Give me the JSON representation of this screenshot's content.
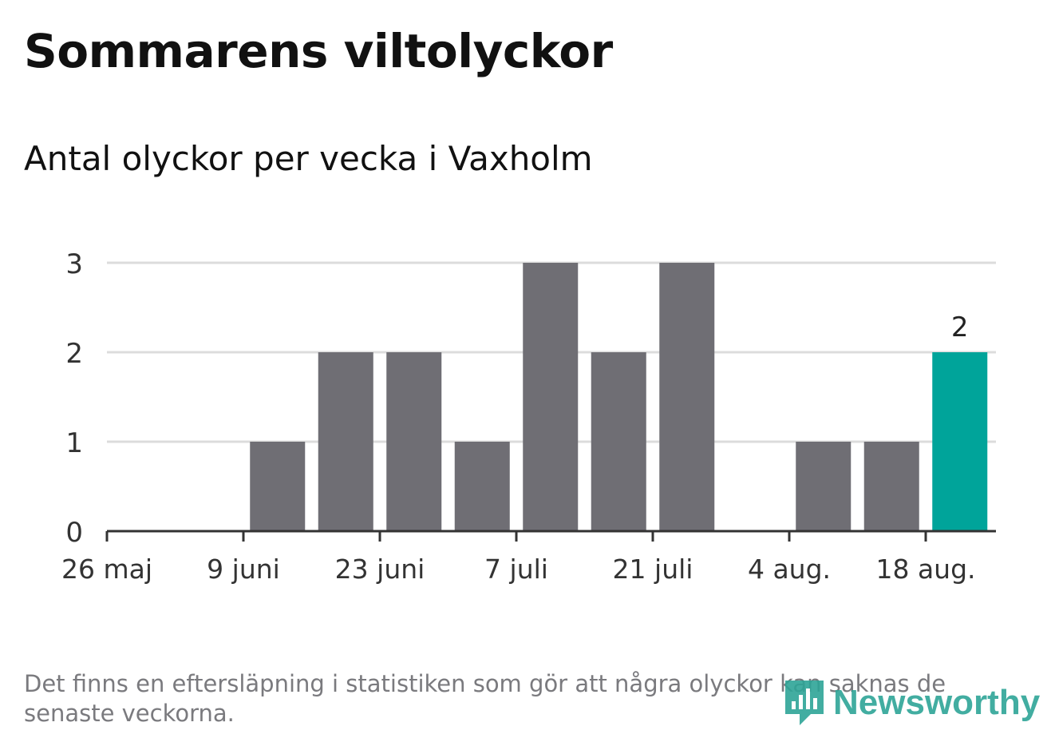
{
  "header": {
    "title": "Sommarens viltolyckor",
    "subtitle": "Antal olyckor per vecka i Vaxholm"
  },
  "footer": {
    "note": "Det finns en eftersläpning i statistiken som gör att några olyckor kan saknas de senaste veckorna.",
    "brand": "Newsworthy"
  },
  "colors": {
    "bar": "#6f6e74",
    "highlight": "#00a49a",
    "grid": "#dcdcdc",
    "axis": "#333333"
  },
  "chart_data": {
    "type": "bar",
    "title": "Sommarens viltolyckor",
    "subtitle": "Antal olyckor per vecka i Vaxholm",
    "x": [
      "2019-05-26",
      "2019-06-02",
      "2019-06-09",
      "2019-06-16",
      "2019-06-23",
      "2019-06-30",
      "2019-07-07",
      "2019-07-14",
      "2019-07-21",
      "2019-07-28",
      "2019-08-04",
      "2019-08-11",
      "2019-08-18"
    ],
    "values": [
      0,
      0,
      1,
      2,
      2,
      1,
      3,
      2,
      3,
      0,
      1,
      1,
      2
    ],
    "x_tick_labels": [
      "26 maj",
      "9 juni",
      "23 juni",
      "7 juli",
      "21 juli",
      "4 aug.",
      "18 aug."
    ],
    "y_ticks": [
      0,
      1,
      2,
      3
    ],
    "ylim": [
      0,
      3
    ],
    "highlight_index": 12,
    "value_labels": [
      {
        "index": 12,
        "text": "2"
      }
    ],
    "grid": true,
    "legend": "none"
  }
}
